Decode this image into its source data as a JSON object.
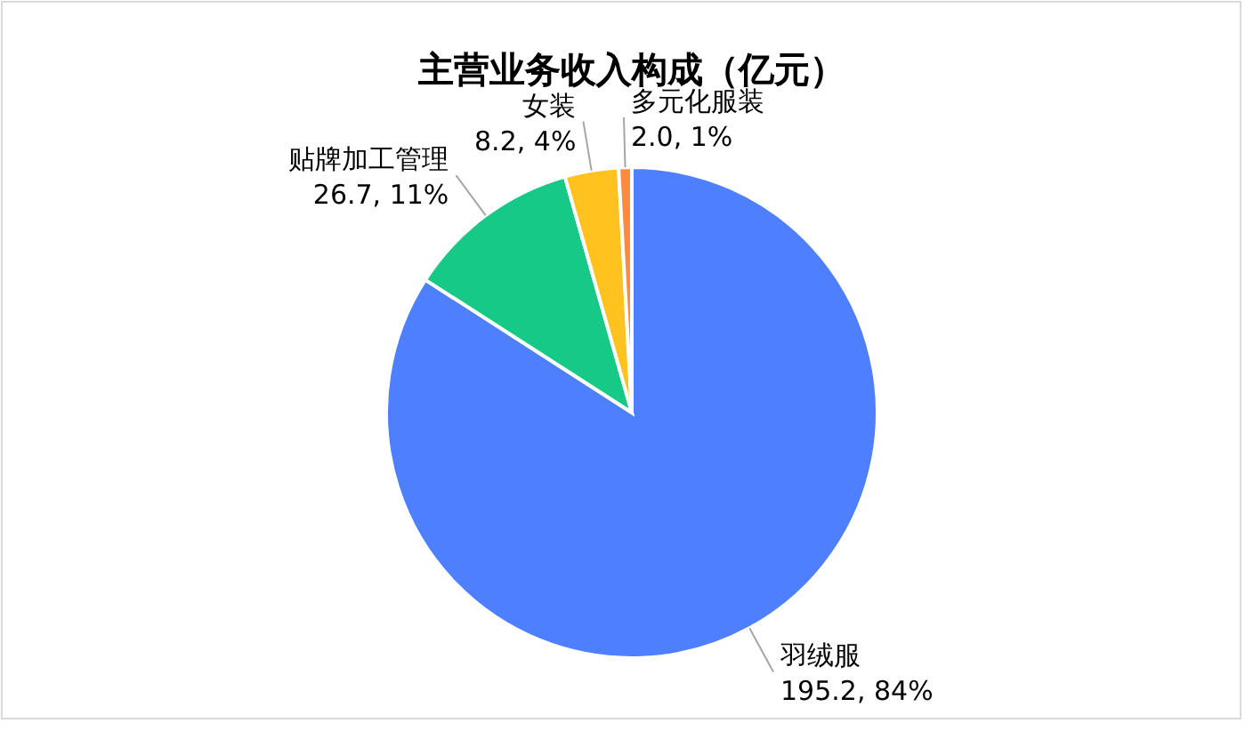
{
  "chart_data": {
    "type": "pie",
    "title": "主营业务收入构成（亿元）",
    "categories": [
      "羽绒服",
      "贴牌加工管理",
      "女装",
      "多元化服装"
    ],
    "values": [
      195.2,
      26.7,
      8.2,
      2.0
    ],
    "value_labels": [
      "195.2, 84%",
      "26.7, 11%",
      "8.2, 4%",
      "2.0, 1%"
    ],
    "colors": [
      "#4e7fff",
      "#17c987",
      "#ffc21f",
      "#ff8a3d"
    ]
  }
}
